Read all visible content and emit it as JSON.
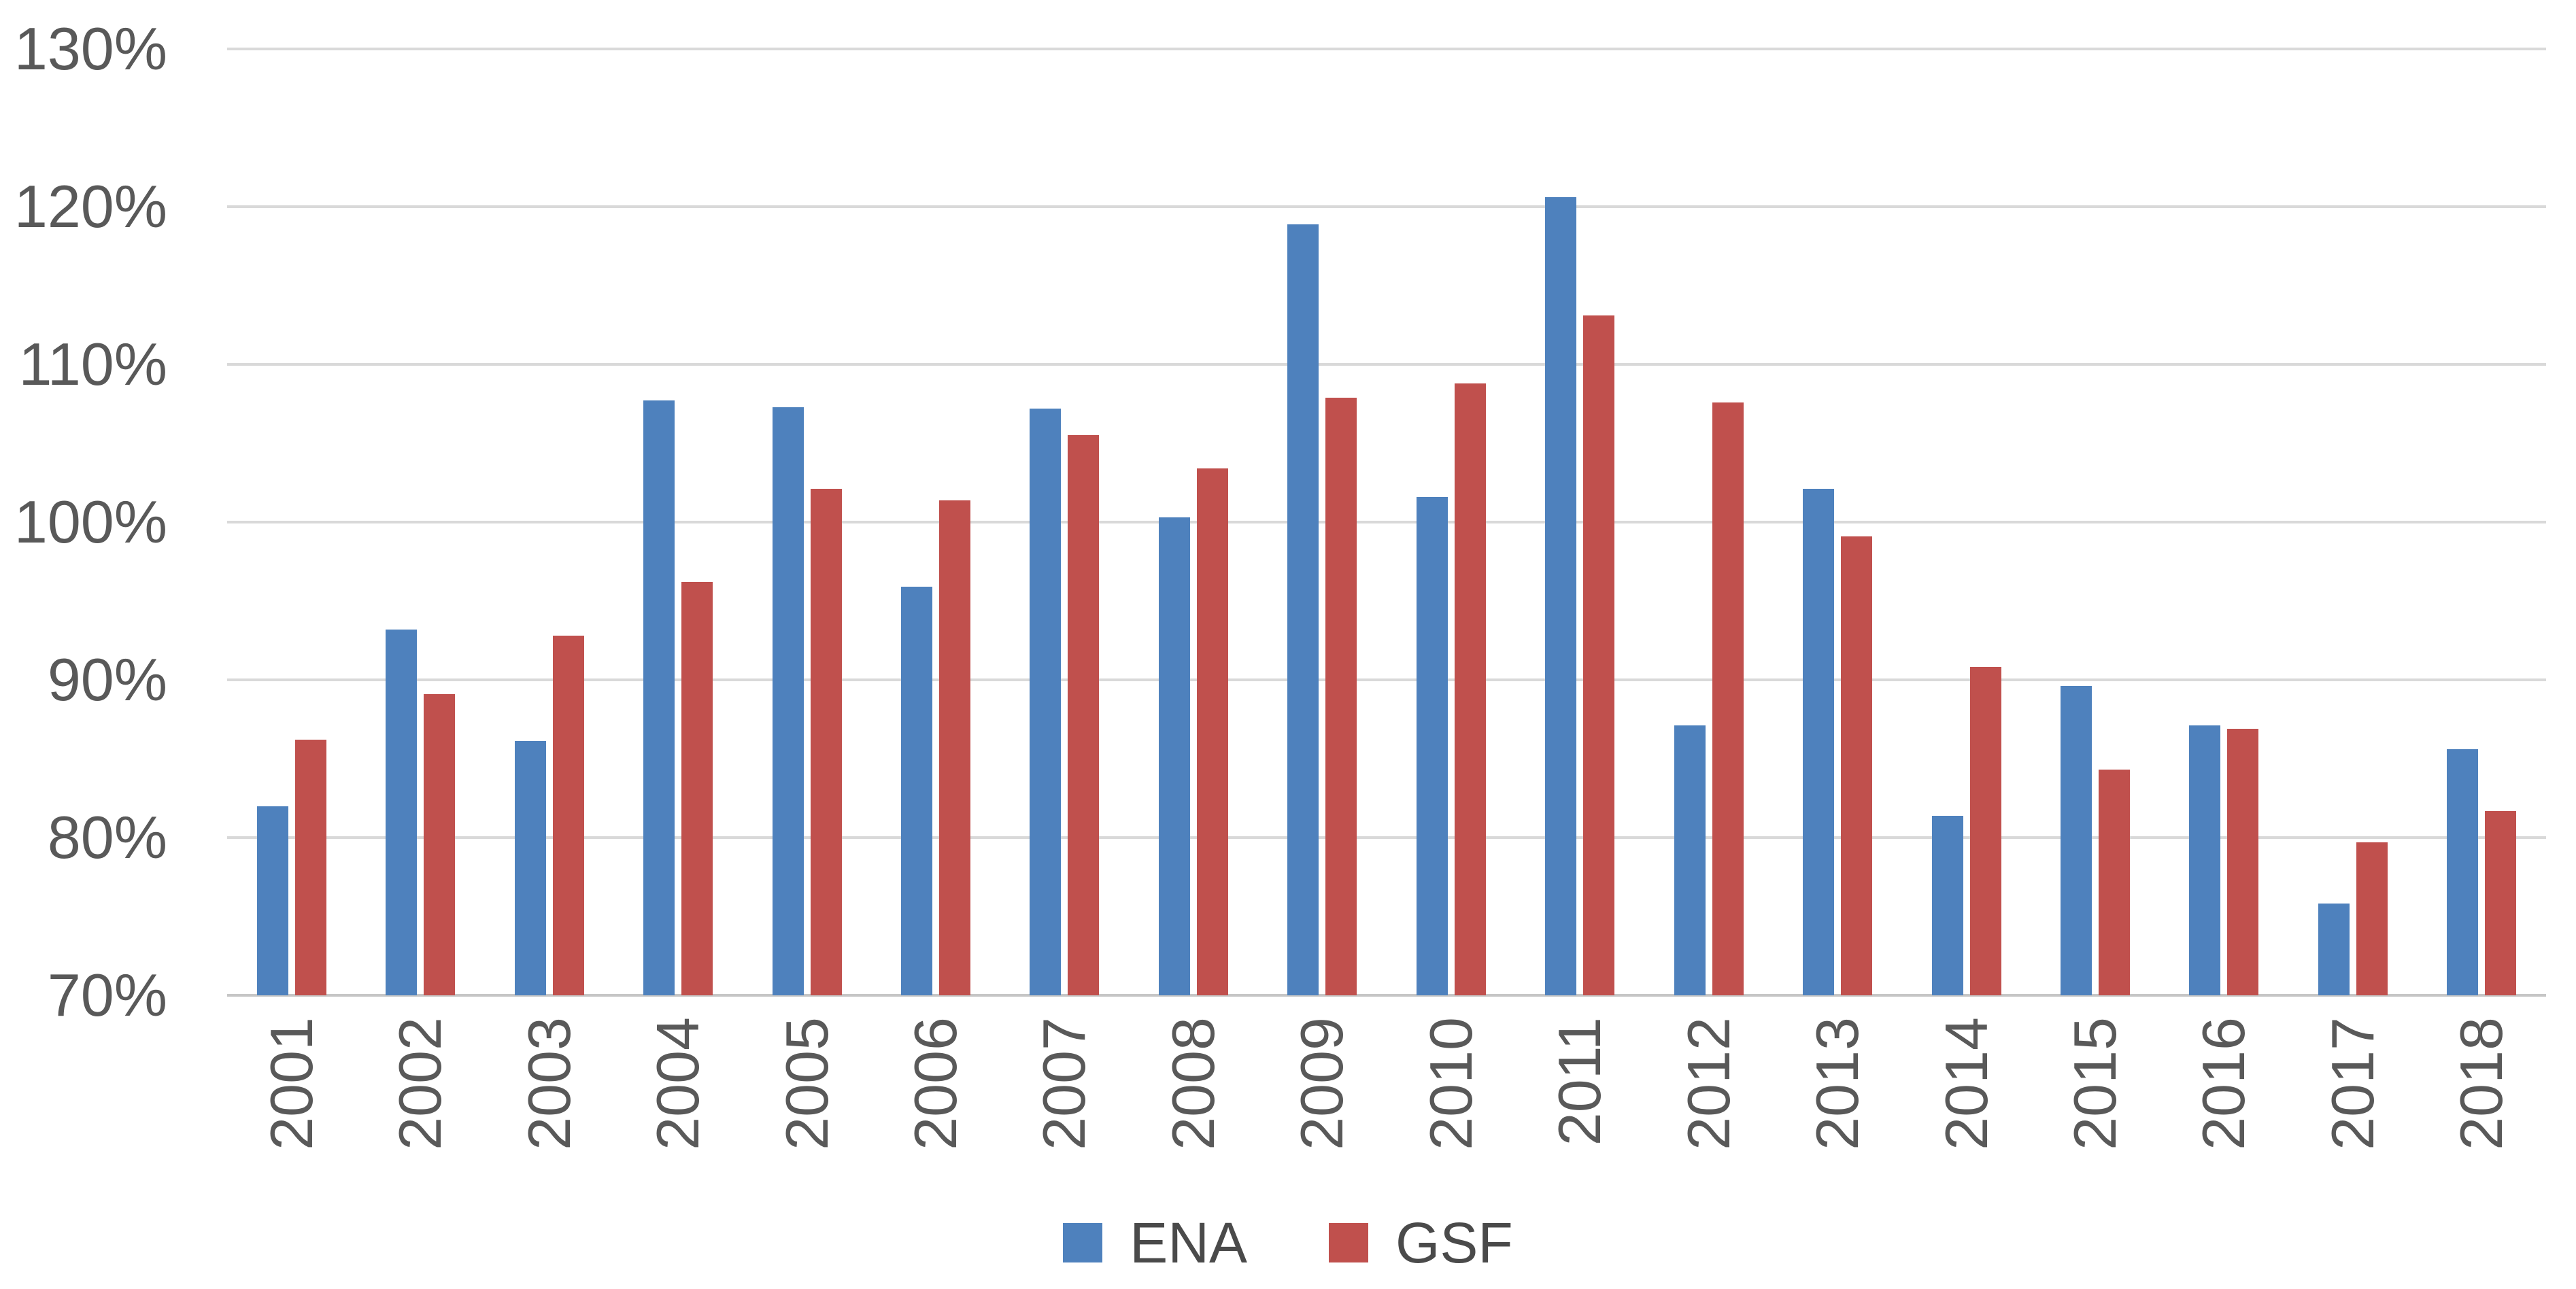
{
  "chart_data": {
    "type": "bar",
    "title": "",
    "xlabel": "",
    "ylabel": "",
    "categories": [
      "2001",
      "2002",
      "2003",
      "2004",
      "2005",
      "2006",
      "2007",
      "2008",
      "2009",
      "2010",
      "2011",
      "2012",
      "2013",
      "2014",
      "2015",
      "2016",
      "2017",
      "2018"
    ],
    "series": [
      {
        "name": "ENA",
        "color": "#4E81BD",
        "values": [
          82.0,
          93.2,
          86.1,
          107.7,
          107.3,
          95.9,
          107.2,
          100.3,
          118.9,
          101.6,
          120.6,
          87.1,
          102.1,
          81.4,
          89.6,
          87.1,
          75.8,
          85.6
        ]
      },
      {
        "name": "GSF",
        "color": "#C0504D",
        "values": [
          86.2,
          89.1,
          92.8,
          96.2,
          102.1,
          101.4,
          105.5,
          103.4,
          107.9,
          108.8,
          113.1,
          107.6,
          99.1,
          90.8,
          84.3,
          86.9,
          79.7,
          81.7
        ]
      }
    ],
    "ylim": [
      70,
      130
    ],
    "ytick_labels": [
      "130%",
      "120%",
      "110%",
      "100%",
      "90%",
      "80%",
      "70%"
    ],
    "ytick_values": [
      130,
      120,
      110,
      100,
      90,
      80,
      70
    ],
    "value_unit": "%",
    "grid": "horizontal",
    "gridline_color": "#D9D9D9",
    "axis_text_color": "#595959",
    "legend_position": "bottom",
    "x_label_rotation": "vertical-bottom-to-top"
  },
  "legend": {
    "items": [
      {
        "label": "ENA",
        "color": "#4E81BD"
      },
      {
        "label": "GSF",
        "color": "#C0504D"
      }
    ]
  }
}
